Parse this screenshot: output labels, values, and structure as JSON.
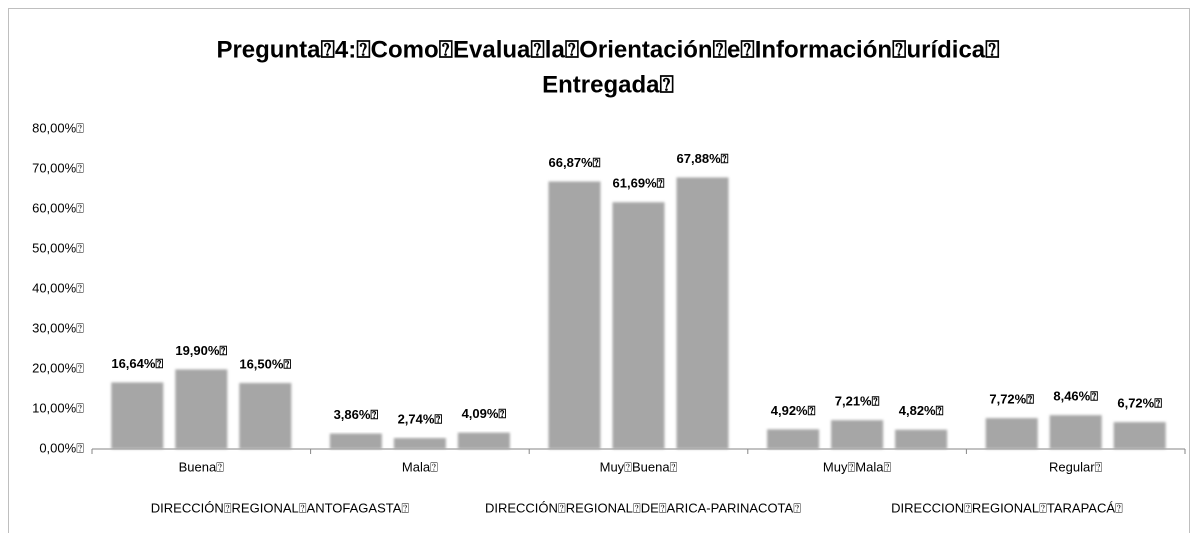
{
  "chart_data": {
    "type": "bar",
    "title": [
      "Pregunta⍰4:⍰Como⍰Evalua⍰la⍰Orientación⍰e⍰Información⍰urídica⍰",
      "Entregada⍰"
    ],
    "categories": [
      "Buena⍰",
      "Mala⍰",
      "Muy⍰Buena⍰",
      "Muy⍰Mala⍰",
      "Regular⍰"
    ],
    "series": [
      {
        "name": "DIRECCIÓN⍰REGIONAL⍰ANTOFAGASTA⍰",
        "color": "#a6a6a6",
        "values": [
          16.64,
          3.86,
          66.87,
          4.92,
          7.72
        ],
        "value_labels": [
          "16,64%⍰",
          "3,86%⍰",
          "66,87%⍰",
          "4,92%⍰",
          "7,72%⍰"
        ]
      },
      {
        "name": "DIRECCIÓN⍰REGIONAL⍰DE⍰ARICA-PARINACOTA⍰",
        "color": "#a6a6a6",
        "values": [
          19.9,
          2.74,
          61.69,
          7.21,
          8.46
        ],
        "value_labels": [
          "19,90%⍰",
          "2,74%⍰",
          "61,69%⍰",
          "7,21%⍰",
          "8,46%⍰"
        ]
      },
      {
        "name": "DIRECCION⍰REGIONAL⍰TARAPACÁ⍰",
        "color": "#a6a6a6",
        "values": [
          16.5,
          4.09,
          67.88,
          4.82,
          6.72
        ],
        "value_labels": [
          "16,50%⍰",
          "4,09%⍰",
          "67,88%⍰",
          "4,82%⍰",
          "6,72%⍰"
        ]
      }
    ],
    "ylim": [
      0,
      80
    ],
    "yticks": [
      {
        "value": 0,
        "label": "0,00%⍰"
      },
      {
        "value": 10,
        "label": "10,00%⍰"
      },
      {
        "value": 20,
        "label": "20,00%⍰"
      },
      {
        "value": 30,
        "label": "30,00%⍰"
      },
      {
        "value": 40,
        "label": "40,00%⍰"
      },
      {
        "value": 50,
        "label": "50,00%⍰"
      },
      {
        "value": 60,
        "label": "60,00%⍰"
      },
      {
        "value": 70,
        "label": "70,00%⍰"
      },
      {
        "value": 80,
        "label": "80,00%⍰"
      }
    ],
    "grid": false,
    "legend": "bottom"
  }
}
